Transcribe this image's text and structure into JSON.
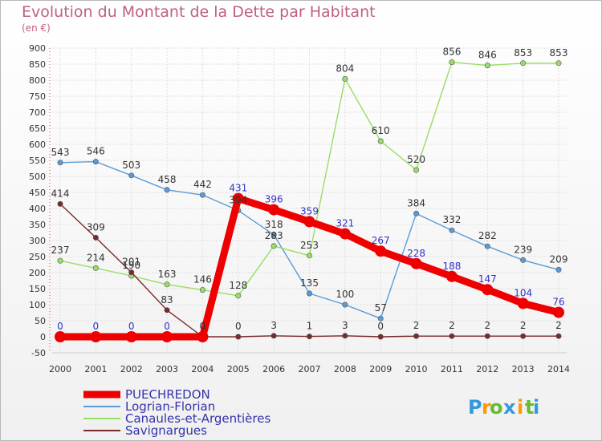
{
  "chart_data": {
    "type": "line",
    "title": "Evolution du Montant de la Dette par Habitant",
    "unit": "(en €)",
    "x": [
      "2000",
      "2001",
      "2002",
      "2003",
      "2004",
      "2005",
      "2006",
      "2007",
      "2008",
      "2009",
      "2010",
      "2011",
      "2012",
      "2013",
      "2014"
    ],
    "ylim": [
      -50,
      900
    ],
    "yticks": [
      -50,
      0,
      50,
      100,
      150,
      200,
      250,
      300,
      350,
      400,
      450,
      500,
      550,
      600,
      650,
      700,
      750,
      800,
      850,
      900
    ],
    "grid": true,
    "legend_position": "bottom-left",
    "series": [
      {
        "name": "PUECHREDON",
        "color": "#ee0000",
        "label_color": "#3333cc",
        "values": [
          0,
          0,
          0,
          0,
          0,
          431,
          396,
          359,
          321,
          267,
          228,
          188,
          147,
          104,
          76
        ]
      },
      {
        "name": "Logrian-Florian",
        "color": "#5b9bd5",
        "label_color": "#333333",
        "values": [
          543,
          546,
          503,
          458,
          442,
          394,
          318,
          135,
          100,
          57,
          384,
          332,
          282,
          239,
          209
        ]
      },
      {
        "name": "Canaules-et-Argentières",
        "color": "#99dd66",
        "label_color": "#333333",
        "values": [
          237,
          214,
          190,
          163,
          146,
          128,
          283,
          253,
          804,
          610,
          520,
          856,
          846,
          853,
          853
        ]
      },
      {
        "name": "Savignargues",
        "color": "#7a2a2a",
        "label_color": "#333333",
        "values": [
          414,
          309,
          201,
          83,
          0,
          0,
          3,
          1,
          3,
          0,
          2,
          2,
          2,
          2,
          2
        ]
      }
    ]
  },
  "logo": {
    "text": "Proxiti",
    "letters": [
      "P",
      "r",
      "o",
      "x",
      "i",
      "t",
      "i"
    ],
    "colors": [
      "#3399dd",
      "#ff9900",
      "#66bb33",
      "#3399dd",
      "#ff9900",
      "#66bb33",
      "#3399dd"
    ]
  }
}
